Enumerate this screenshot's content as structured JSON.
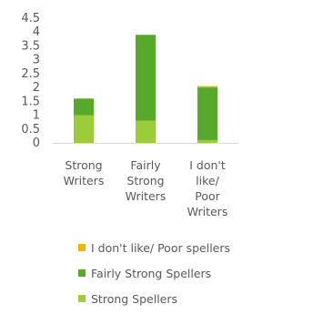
{
  "chart_data": {
    "type": "bar",
    "stacked": true,
    "categories": [
      [
        "Strong",
        "Writers"
      ],
      [
        "Fairly",
        "Strong",
        "Writers"
      ],
      [
        "I don't",
        "like/",
        "Poor",
        "Writers"
      ]
    ],
    "series": [
      {
        "name": "Strong Spellers",
        "values": [
          1.0,
          0.8,
          0.1
        ],
        "color": "#9bcc3a"
      },
      {
        "name": "Fairly Strong Spellers",
        "values": [
          0.6,
          3.1,
          1.9
        ],
        "color": "#58a82b"
      },
      {
        "name": "I don't like/ Poor spellers",
        "values": [
          0,
          0,
          0.05
        ],
        "color": "#f0b400"
      }
    ],
    "y_ticks": [
      "0",
      "0.5",
      "1",
      "1.5",
      "2",
      "2.5",
      "3",
      "3.5",
      "4",
      "4.5"
    ],
    "ylim": [
      0,
      4.5
    ],
    "grid": false,
    "legend_position": "bottom",
    "legend_order": [
      "I don't like/ Poor spellers",
      "Fairly Strong Spellers",
      "Strong Spellers"
    ]
  }
}
